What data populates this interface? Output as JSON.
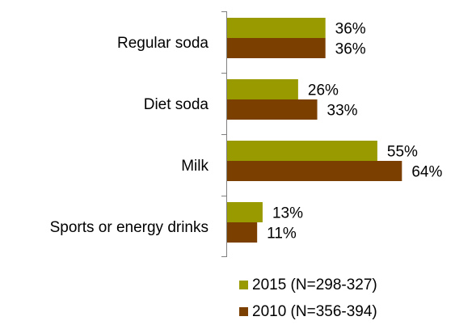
{
  "chart_data": {
    "type": "bar",
    "orientation": "horizontal",
    "categories": [
      "Regular soda",
      "Diet soda",
      "Milk",
      "Sports or energy drinks"
    ],
    "series": [
      {
        "name": "2015 (N=298-327)",
        "values": [
          36,
          26,
          55,
          13
        ],
        "labels": [
          "36%",
          "26%",
          "55%",
          "13%"
        ],
        "color": "#999900"
      },
      {
        "name": "2010 (N=356-394)",
        "values": [
          36,
          33,
          64,
          11
        ],
        "labels": [
          "36%",
          "33%",
          "64%",
          "11%"
        ],
        "color": "#7B3F00"
      }
    ],
    "value_unit": "%",
    "xlim": [
      0,
      100
    ],
    "grid": false,
    "legend_position": "bottom-right"
  }
}
